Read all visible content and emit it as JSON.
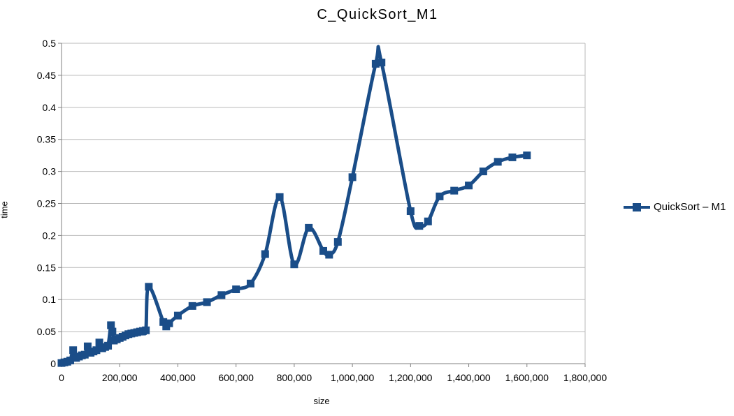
{
  "chart_data": {
    "type": "line",
    "title": "C_QuickSort_M1",
    "xlabel": "size",
    "ylabel": "time",
    "xlim": [
      0,
      1800000
    ],
    "ylim": [
      0,
      0.5
    ],
    "grid": "horizontal",
    "legend_position": "right",
    "x_ticks": [
      0,
      200000,
      400000,
      600000,
      800000,
      1000000,
      1200000,
      1400000,
      1600000,
      1800000
    ],
    "x_tick_labels": [
      "0",
      "200,000",
      "400,000",
      "600,000",
      "800,000",
      "1,000,000",
      "1,200,000",
      "1,400,000",
      "1,600,000",
      "1,800,000"
    ],
    "y_ticks": [
      0,
      0.05,
      0.1,
      0.15,
      0.2,
      0.25,
      0.3,
      0.35,
      0.4,
      0.45,
      0.5
    ],
    "y_tick_labels": [
      "0",
      "0.05",
      "0.1",
      "0.15",
      "0.2",
      "0.25",
      "0.3",
      "0.35",
      "0.4",
      "0.45",
      "0.5"
    ],
    "series": [
      {
        "name": "QuickSort – M1",
        "marker": "square",
        "smooth": true,
        "points": [
          [
            0,
            0.001
          ],
          [
            10000,
            0.002
          ],
          [
            20000,
            0.003
          ],
          [
            30000,
            0.005
          ],
          [
            40000,
            0.021
          ],
          [
            50000,
            0.009
          ],
          [
            60000,
            0.011
          ],
          [
            70000,
            0.013
          ],
          [
            80000,
            0.014
          ],
          [
            90000,
            0.027
          ],
          [
            100000,
            0.017
          ],
          [
            110000,
            0.019
          ],
          [
            120000,
            0.021
          ],
          [
            130000,
            0.033
          ],
          [
            140000,
            0.024
          ],
          [
            150000,
            0.026
          ],
          [
            160000,
            0.028
          ],
          [
            170000,
            0.06
          ],
          [
            175000,
            0.05
          ],
          [
            180000,
            0.036
          ],
          [
            190000,
            0.038
          ],
          [
            200000,
            0.04
          ],
          [
            210000,
            0.042
          ],
          [
            220000,
            0.044
          ],
          [
            230000,
            0.046
          ],
          [
            240000,
            0.047
          ],
          [
            250000,
            0.048
          ],
          [
            260000,
            0.049
          ],
          [
            270000,
            0.05
          ],
          [
            280000,
            0.051
          ],
          [
            290000,
            0.052
          ],
          [
            300000,
            0.12
          ],
          [
            350000,
            0.065
          ],
          [
            360000,
            0.058
          ],
          [
            370000,
            0.063
          ],
          [
            400000,
            0.075
          ],
          [
            450000,
            0.09
          ],
          [
            500000,
            0.096
          ],
          [
            550000,
            0.107
          ],
          [
            600000,
            0.116
          ],
          [
            650000,
            0.125
          ],
          [
            700000,
            0.171
          ],
          [
            750000,
            0.26
          ],
          [
            800000,
            0.155
          ],
          [
            850000,
            0.212
          ],
          [
            900000,
            0.176
          ],
          [
            920000,
            0.17
          ],
          [
            950000,
            0.19
          ],
          [
            1000000,
            0.291
          ],
          [
            1080000,
            0.468
          ],
          [
            1100000,
            0.47
          ],
          [
            1200000,
            0.238
          ],
          [
            1230000,
            0.215
          ],
          [
            1260000,
            0.222
          ],
          [
            1300000,
            0.261
          ],
          [
            1350000,
            0.27
          ],
          [
            1400000,
            0.278
          ],
          [
            1450000,
            0.3
          ],
          [
            1500000,
            0.315
          ],
          [
            1550000,
            0.322
          ],
          [
            1600000,
            0.325
          ]
        ]
      }
    ],
    "colors": {
      "series": "#1a4d88",
      "grid": "#b9b9b9",
      "axis": "#808080",
      "text": "#000000",
      "background": "#ffffff"
    }
  }
}
